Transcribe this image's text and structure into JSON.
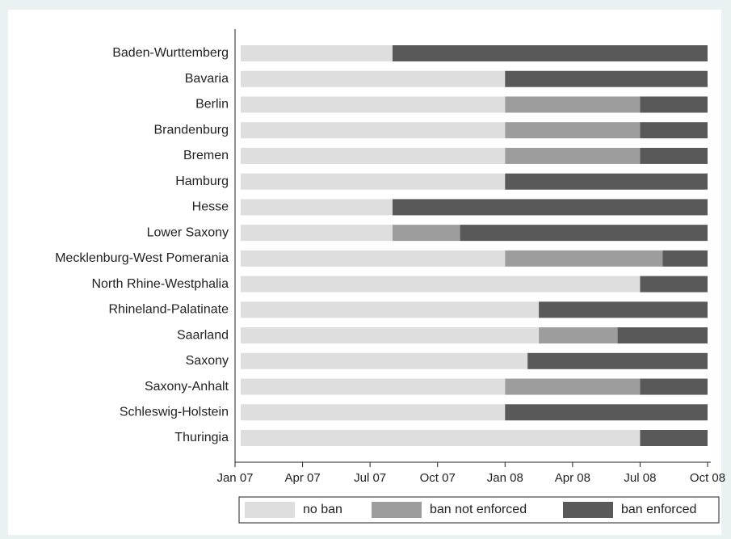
{
  "chart_data": {
    "type": "stacked-barh",
    "categories": [
      "Baden-Wurttemberg",
      "Bavaria",
      "Berlin",
      "Brandenburg",
      "Bremen",
      "Hamburg",
      "Hesse",
      "Lower Saxony",
      "Mecklenburg-West Pomerania",
      "North Rhine-Westphalia",
      "Rhineland-Palatinate",
      "Saarland",
      "Saxony",
      "Saxony-Anhalt",
      "Schleswig-Holstein",
      "Thuringia"
    ],
    "series": [
      {
        "name": "no ban",
        "color": "#dedede",
        "values": [
          7,
          12,
          12,
          12,
          12,
          12,
          7,
          7,
          12,
          18,
          13.5,
          13.5,
          13,
          12,
          12,
          18
        ]
      },
      {
        "name": "ban not enforced",
        "color": "#9d9d9d",
        "values": [
          0,
          0,
          6,
          6,
          6,
          0,
          0,
          3,
          7,
          0,
          0,
          3.5,
          0,
          6,
          0,
          0
        ]
      },
      {
        "name": "ban enforced",
        "color": "#595959",
        "values": [
          14,
          9,
          3,
          3,
          3,
          9,
          14,
          11,
          2,
          3,
          7.5,
          4,
          8,
          3,
          9,
          3
        ]
      }
    ],
    "xlim": [
      0,
      21
    ],
    "xticks": [
      {
        "value": 0,
        "label": "Jan 07"
      },
      {
        "value": 3,
        "label": "Apr 07"
      },
      {
        "value": 6,
        "label": "Jul 07"
      },
      {
        "value": 9,
        "label": "Oct 07"
      },
      {
        "value": 12,
        "label": "Jan 08"
      },
      {
        "value": 15,
        "label": "Apr 08"
      },
      {
        "value": 18,
        "label": "Jul 08"
      },
      {
        "value": 21,
        "label": "Oct 08"
      }
    ],
    "legend": "bottom"
  }
}
